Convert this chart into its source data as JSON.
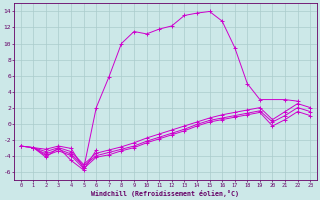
{
  "xlabel": "Windchill (Refroidissement éolien,°C)",
  "background_color": "#cce8e8",
  "grid_color": "#aacccc",
  "line_color": "#cc00cc",
  "xlim": [
    -0.5,
    23.5
  ],
  "ylim": [
    -7,
    15
  ],
  "yticks": [
    -6,
    -4,
    -2,
    0,
    2,
    4,
    6,
    8,
    10,
    12,
    14
  ],
  "xticks": [
    0,
    1,
    2,
    3,
    4,
    5,
    6,
    7,
    8,
    9,
    10,
    11,
    12,
    13,
    14,
    15,
    16,
    17,
    18,
    19,
    20,
    21,
    22,
    23
  ],
  "line0_x": [
    1,
    2,
    3,
    4,
    5,
    6,
    7,
    8,
    9,
    10,
    11,
    12,
    13,
    14,
    15,
    16,
    17,
    18,
    19,
    21,
    22
  ],
  "line0_y": [
    -3.0,
    -3.2,
    -2.8,
    -3.1,
    -5.6,
    2.0,
    5.8,
    10.0,
    11.5,
    11.2,
    11.8,
    12.2,
    13.5,
    13.8,
    14.0,
    12.8,
    9.5,
    5.0,
    3.0,
    3.0,
    2.8
  ],
  "line1_x": [
    1,
    2,
    3,
    4,
    5,
    6
  ],
  "line1_y": [
    -3.0,
    -4.2,
    -3.0,
    -4.6,
    -5.8,
    -3.3
  ],
  "line2_x": [
    0,
    1,
    2,
    3,
    4,
    5,
    6,
    7,
    8,
    9,
    10,
    11,
    12,
    13,
    14,
    15,
    16,
    17,
    18,
    19,
    20,
    21,
    22,
    23
  ],
  "line2_y": [
    -2.8,
    -3.0,
    -3.8,
    -3.2,
    -3.8,
    -5.3,
    -4.0,
    -3.6,
    -3.2,
    -2.8,
    -2.2,
    -1.7,
    -1.2,
    -0.7,
    -0.1,
    0.4,
    0.7,
    1.0,
    1.3,
    1.6,
    0.2,
    1.0,
    2.0,
    1.5
  ],
  "line3_x": [
    0,
    1,
    2,
    3,
    4,
    5,
    6,
    7,
    8,
    9,
    10,
    11,
    12,
    13,
    14,
    15,
    16,
    17,
    18,
    19,
    20,
    21,
    22,
    23
  ],
  "line3_y": [
    -2.8,
    -3.0,
    -4.0,
    -3.4,
    -4.0,
    -5.6,
    -4.2,
    -3.9,
    -3.4,
    -3.0,
    -2.4,
    -1.9,
    -1.4,
    -0.9,
    -0.3,
    0.2,
    0.5,
    0.8,
    1.1,
    1.4,
    -0.3,
    0.5,
    1.5,
    1.0
  ],
  "line4_x": [
    0,
    1,
    2,
    3,
    4,
    5,
    6,
    7,
    8,
    9,
    10,
    11,
    12,
    13,
    14,
    15,
    16,
    17,
    18,
    19,
    20,
    21,
    22,
    23
  ],
  "line4_y": [
    -2.8,
    -3.0,
    -3.5,
    -3.0,
    -3.5,
    -5.1,
    -3.7,
    -3.3,
    -2.9,
    -2.4,
    -1.8,
    -1.3,
    -0.8,
    -0.3,
    0.2,
    0.7,
    1.1,
    1.4,
    1.7,
    2.0,
    0.5,
    1.5,
    2.5,
    2.0
  ]
}
